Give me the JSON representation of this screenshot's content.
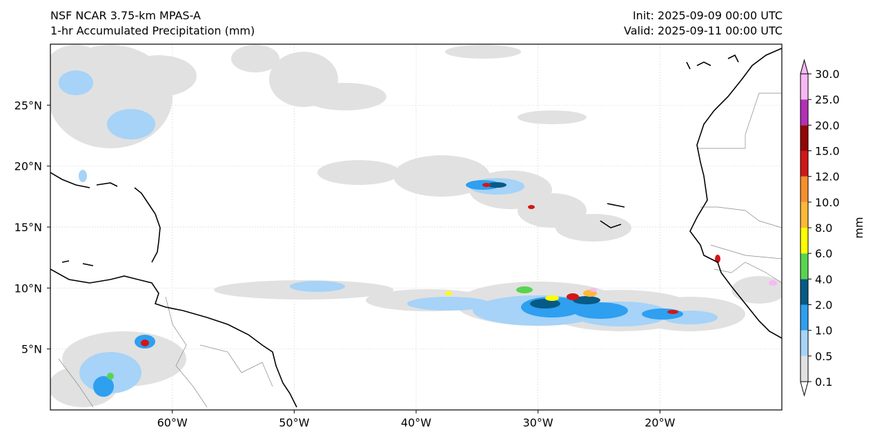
{
  "header": {
    "model": "NSF NCAR 3.75-km MPAS-A",
    "product": "1-hr Accumulated Precipitation (mm)",
    "init": "Init: 2025-09-09 00:00 UTC",
    "valid": "Valid: 2025-09-11 00:00 UTC"
  },
  "map": {
    "projection": "PlateCarree",
    "lon_range": [
      -70,
      -10
    ],
    "lat_range": [
      0,
      30
    ],
    "lon_ticks": [
      {
        "value": -60,
        "label": "60°W"
      },
      {
        "value": -50,
        "label": "50°W"
      },
      {
        "value": -40,
        "label": "40°W"
      },
      {
        "value": -30,
        "label": "30°W"
      },
      {
        "value": -20,
        "label": "20°W"
      }
    ],
    "lat_ticks": [
      {
        "value": 5,
        "label": "5°N"
      },
      {
        "value": 10,
        "label": "10°N"
      },
      {
        "value": 15,
        "label": "15°N"
      },
      {
        "value": 20,
        "label": "20°N"
      },
      {
        "value": 25,
        "label": "25°N"
      }
    ],
    "gridlines": true,
    "colors": {
      "coast": "#000000",
      "border": "#888888",
      "grid": "#d9d9d9"
    }
  },
  "colorbar": {
    "label": "mm",
    "extend": "both",
    "levels": [
      "0.1",
      "0.5",
      "1.0",
      "2.0",
      "4.0",
      "6.0",
      "8.0",
      "10.0",
      "12.0",
      "15.0",
      "20.0",
      "25.0",
      "30.0"
    ],
    "colors": [
      "#e1e1e1",
      "#a6d3f7",
      "#2f9ff0",
      "#065a86",
      "#58d450",
      "#ffff00",
      "#fdb937",
      "#f68f2c",
      "#d11717",
      "#950606",
      "#b231b5",
      "#f9b8f5"
    ],
    "under_color": "#ffffff",
    "over_color": "#f9b8f5"
  }
}
